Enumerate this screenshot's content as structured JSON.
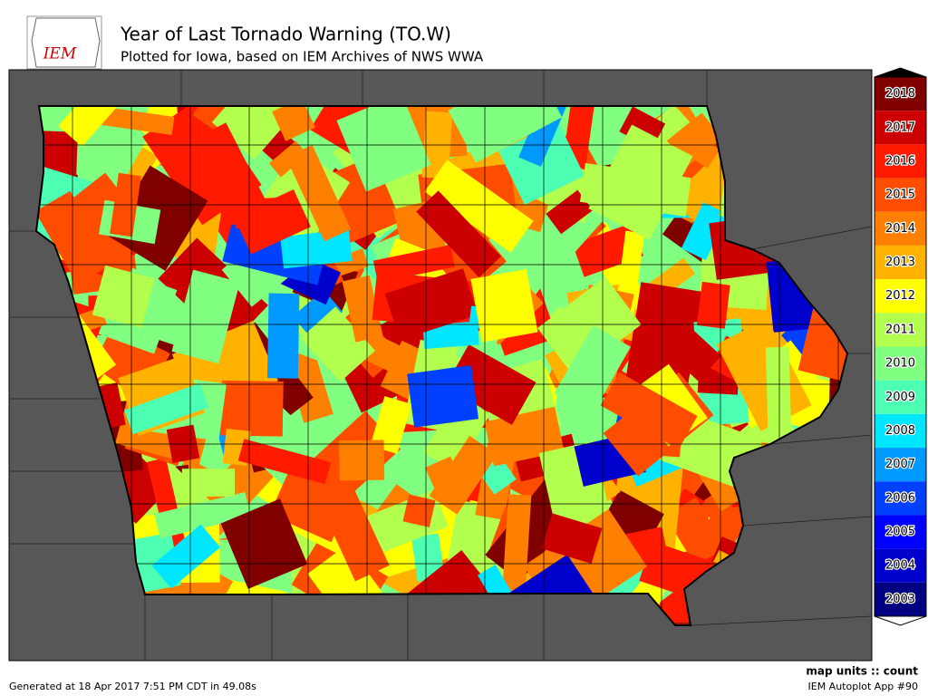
{
  "header": {
    "logo": "IEM",
    "title": "Year of Last Tornado Warning (TO.W)",
    "subtitle": "Plotted for Iowa, based on IEM Archives of NWS WWA"
  },
  "legend": {
    "labels": [
      "2018",
      "2017",
      "2016",
      "2015",
      "2014",
      "2013",
      "2012",
      "2011",
      "2010",
      "2009",
      "2008",
      "2007",
      "2006",
      "2005",
      "2004",
      "2003"
    ],
    "colors": [
      "#800000",
      "#cc0000",
      "#ff1a00",
      "#ff4d00",
      "#ff8000",
      "#ffb300",
      "#ffff00",
      "#b3ff4d",
      "#80ff80",
      "#4dffb3",
      "#00e6ff",
      "#0099ff",
      "#0040ff",
      "#0000ff",
      "#0000cc",
      "#000080"
    ]
  },
  "footer": {
    "units": "map units :: count",
    "generated": "Generated at 18 Apr 2017 7:51 PM CDT in 49.08s",
    "app": "IEM Autoplot App #90"
  }
}
